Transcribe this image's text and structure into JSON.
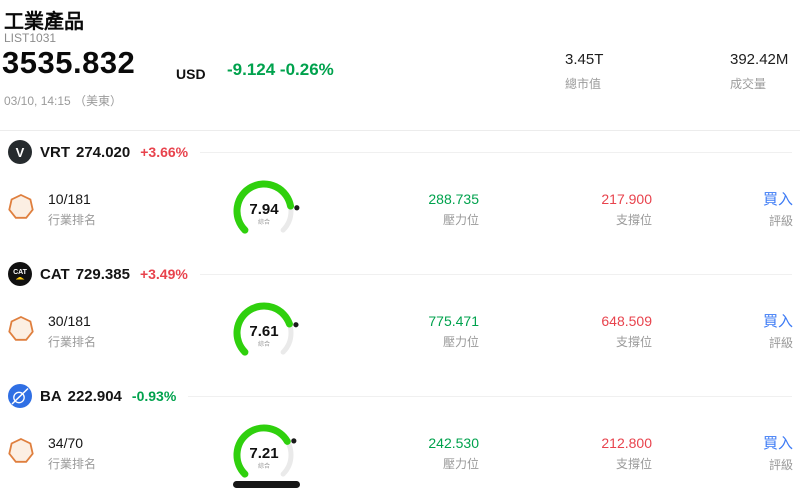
{
  "colors": {
    "green": "#00a24d",
    "red": "#e8434d",
    "blue": "#3d7bf5",
    "arc": "#2fd00d",
    "label": "#9a9a9a"
  },
  "header": {
    "title": "工業產品",
    "list_id": "LIST1031",
    "price": "3535.832",
    "currency": "USD",
    "change": "-9.124 -0.26%",
    "change_color": "#00a24d",
    "datetime": "03/10, 14:15 （美東）",
    "market_cap": {
      "value": "3.45T",
      "label": "總市值"
    },
    "volume": {
      "value": "392.42M",
      "label": "成交量"
    }
  },
  "stocks": [
    {
      "ticker": "VRT",
      "price": "274.020",
      "change": "+3.66%",
      "change_color": "#e8434d",
      "logo_text": "V",
      "logo_bg": "#262b2e",
      "rank": "10/181",
      "rank_label": "行業排名",
      "score": "7.94",
      "score_max": 10,
      "score_label": "綜合",
      "resistance": "288.735",
      "resistance_label": "壓力位",
      "support": "217.900",
      "support_label": "支撐位",
      "rating": "買入",
      "rating_label": "評級"
    },
    {
      "ticker": "CAT",
      "price": "729.385",
      "change": "+3.49%",
      "change_color": "#e8434d",
      "logo_text": "CAT",
      "logo_bg": "#111111",
      "rank": "30/181",
      "rank_label": "行業排名",
      "score": "7.61",
      "score_max": 10,
      "score_label": "綜合",
      "resistance": "775.471",
      "resistance_label": "壓力位",
      "support": "648.509",
      "support_label": "支撐位",
      "rating": "買入",
      "rating_label": "評級"
    },
    {
      "ticker": "BA",
      "price": "222.904",
      "change": "-0.93%",
      "change_color": "#00a24d",
      "logo_text": "",
      "logo_bg": "#2f6fe4",
      "rank": "34/70",
      "rank_label": "行業排名",
      "score": "7.21",
      "score_max": 10,
      "score_label": "綜合",
      "resistance": "242.530",
      "resistance_label": "壓力位",
      "support": "212.800",
      "support_label": "支撐位",
      "rating": "買入",
      "rating_label": "評級"
    }
  ]
}
